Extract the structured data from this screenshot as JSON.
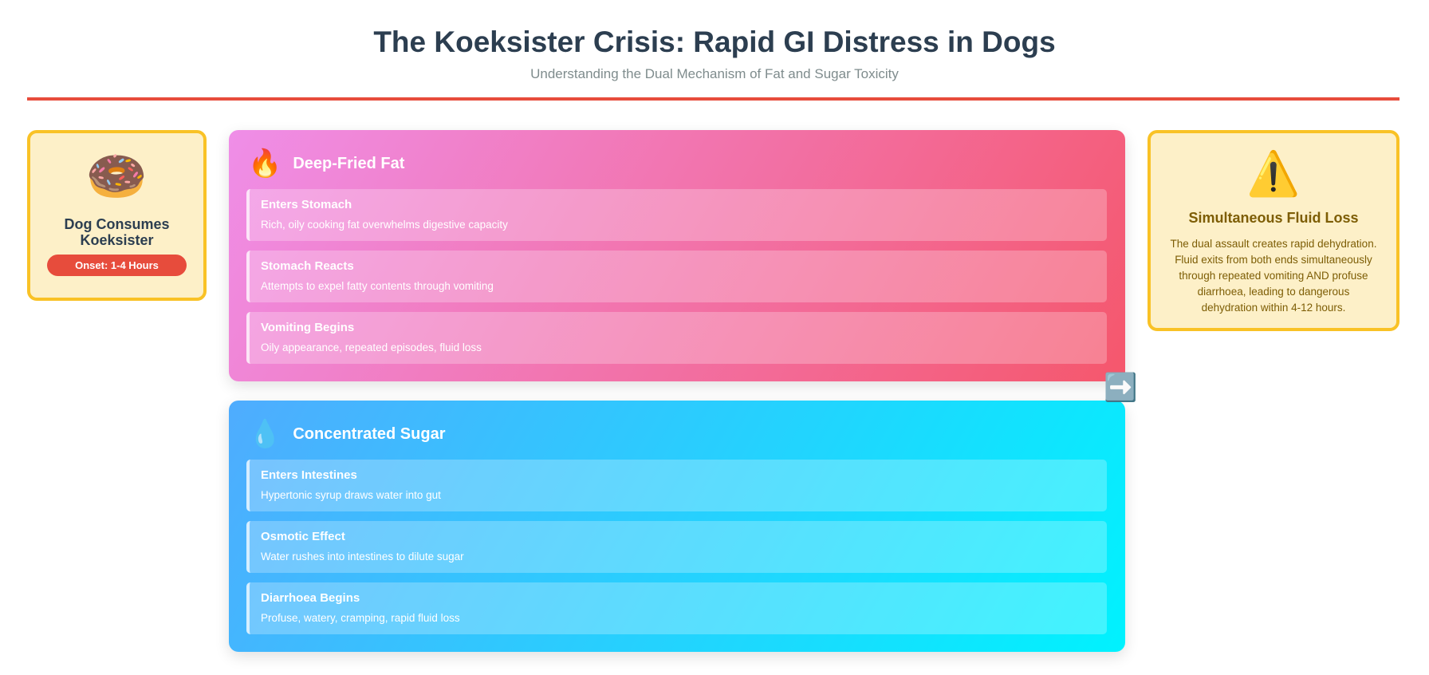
{
  "header": {
    "title": "The Koeksister Crisis: Rapid GI Distress in Dogs",
    "subtitle": "Understanding the Dual Mechanism of Fat and Sugar Toxicity"
  },
  "start": {
    "icon": "🍩",
    "title": "Dog Consumes Koeksister",
    "badge": "Onset: 1-4 Hours"
  },
  "pathways": [
    {
      "icon": "🔥",
      "title": "Deep-Fried Fat",
      "steps": [
        {
          "title": "Enters Stomach",
          "text": "Rich, oily cooking fat overwhelms digestive capacity"
        },
        {
          "title": "Stomach Reacts",
          "text": "Attempts to expel fatty contents through vomiting"
        },
        {
          "title": "Vomiting Begins",
          "text": "Oily appearance, repeated episodes, fluid loss"
        }
      ]
    },
    {
      "icon": "💧",
      "title": "Concentrated Sugar",
      "steps": [
        {
          "title": "Enters Intestines",
          "text": "Hypertonic syrup draws water into gut"
        },
        {
          "title": "Osmotic Effect",
          "text": "Water rushes into intestines to dilute sugar"
        },
        {
          "title": "Diarrhoea Begins",
          "text": "Profuse, watery, cramping, rapid fluid loss"
        }
      ]
    }
  ],
  "arrow": "➡️",
  "outcome": {
    "icon": "⚠️",
    "title": "Simultaneous Fluid Loss",
    "text": "The dual assault creates rapid dehydration. Fluid exits from both ends simultaneously through repeated vomiting AND profuse diarrhoea, leading to dangerous dehydration within 4-12 hours."
  }
}
